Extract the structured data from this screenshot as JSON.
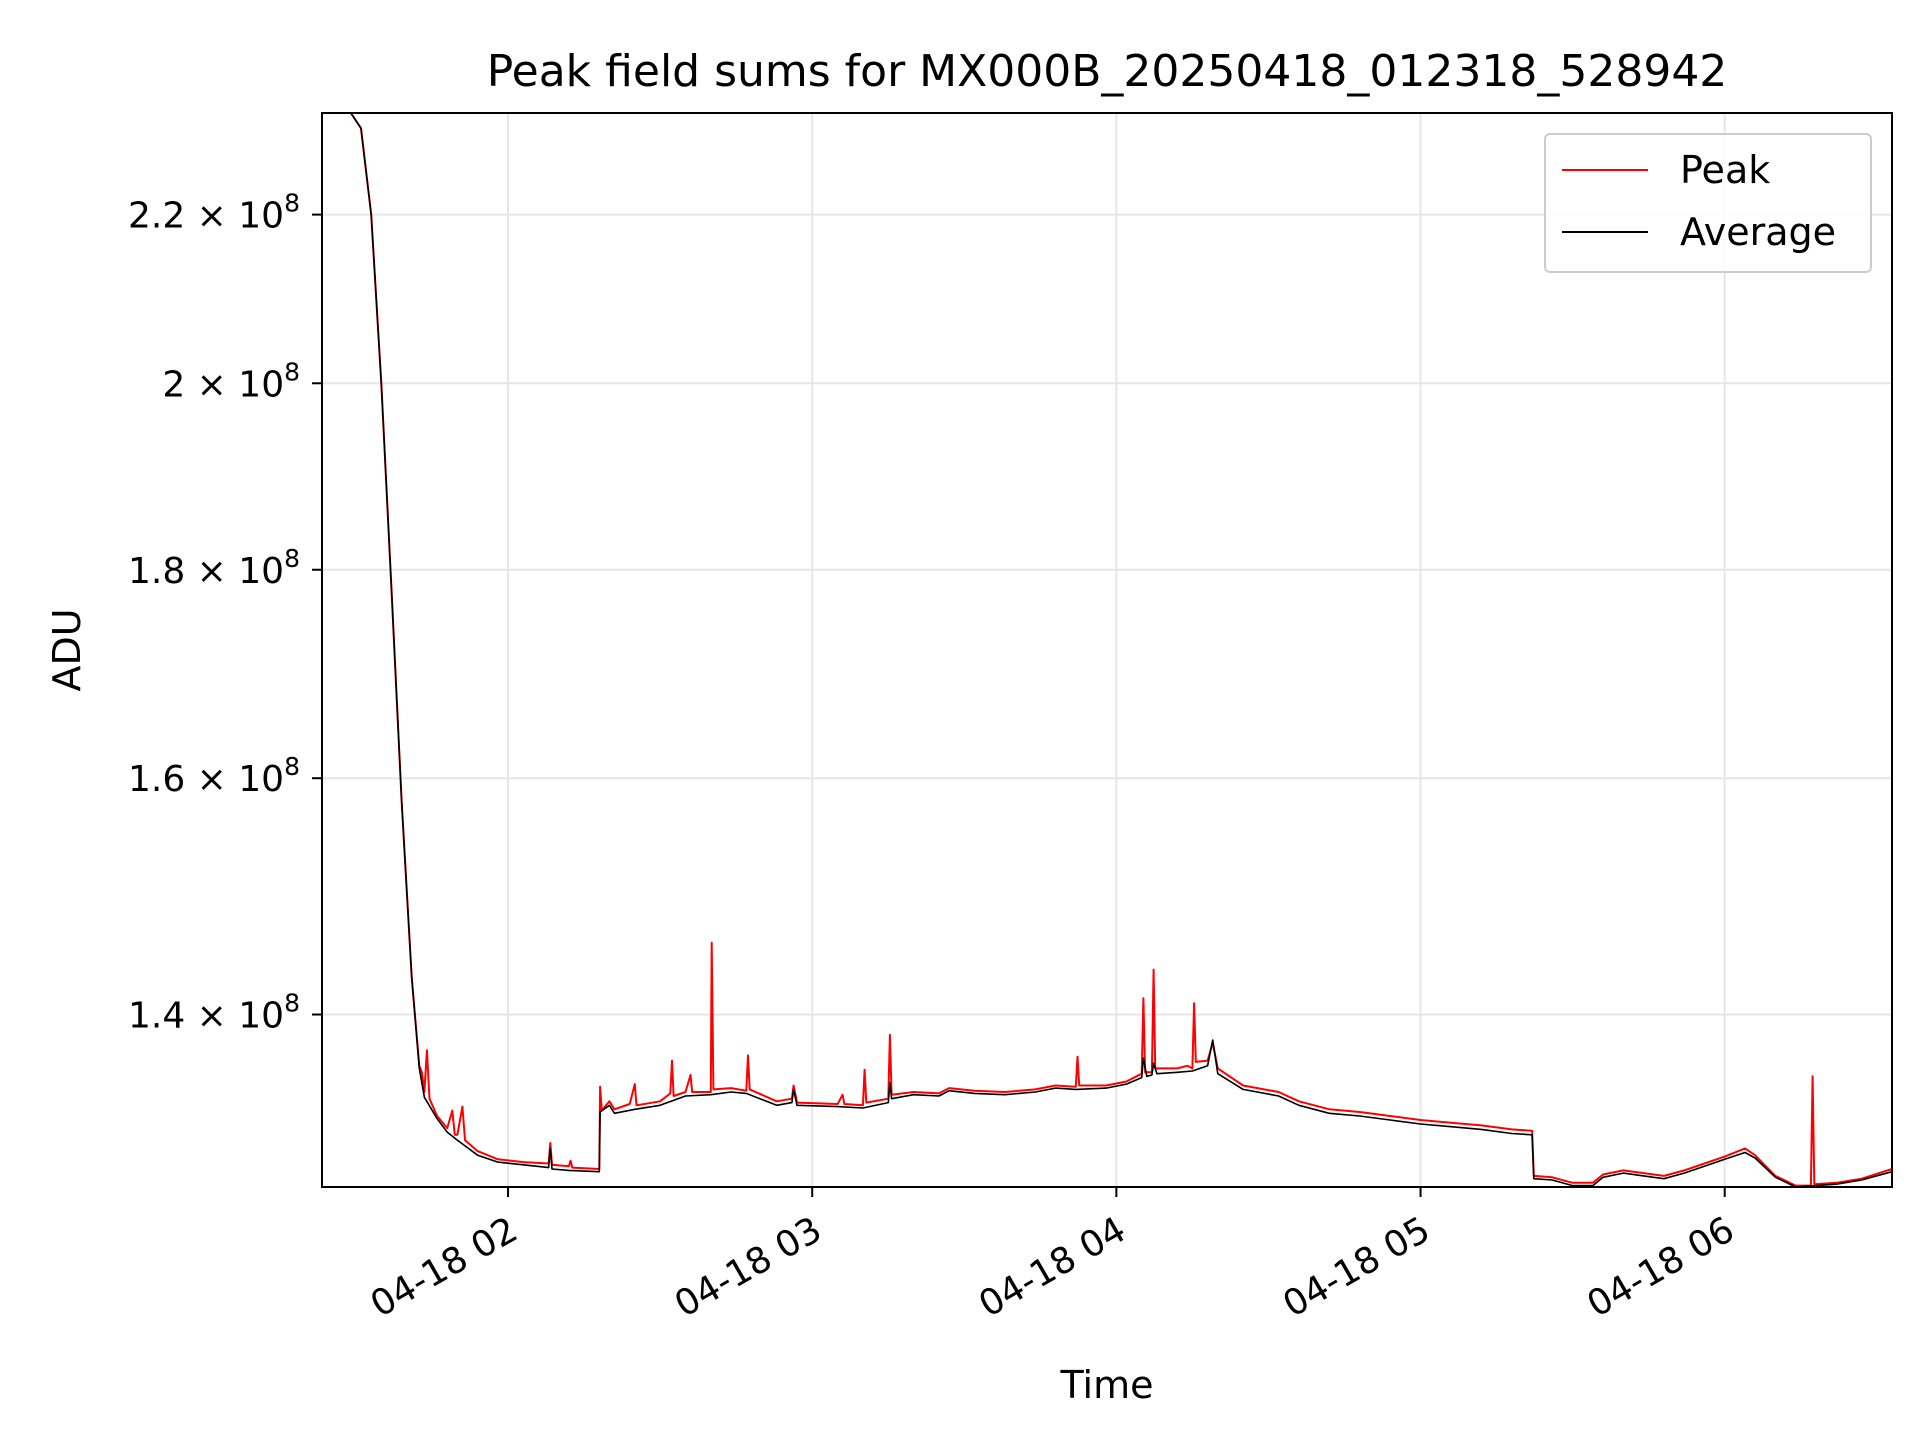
{
  "chart_data": {
    "type": "line",
    "title": "Peak field sums for MX000B_20250418_012318_528942",
    "xlabel": "Time",
    "ylabel": "ADU",
    "yscale": "log",
    "xlim": [
      "2025-04-18 01:23:18",
      "2025-04-18 06:33:00"
    ],
    "ylim": [
      127000000,
      233000000
    ],
    "x_ticks": [
      "04-18 02",
      "04-18 03",
      "04-18 04",
      "04-18 05",
      "04-18 06"
    ],
    "x_tick_values": [
      "2025-04-18 02:00",
      "2025-04-18 03:00",
      "2025-04-18 04:00",
      "2025-04-18 05:00",
      "2025-04-18 06:00"
    ],
    "y_ticks": [
      {
        "value": 140000000,
        "mantissa": "1.4",
        "exponent": "8"
      },
      {
        "value": 160000000,
        "mantissa": "1.6",
        "exponent": "8"
      },
      {
        "value": 180000000,
        "mantissa": "1.8",
        "exponent": "8"
      },
      {
        "value": 200000000,
        "mantissa": "2",
        "exponent": "8"
      },
      {
        "value": 220000000,
        "mantissa": "2.2",
        "exponent": "8"
      }
    ],
    "grid": true,
    "legend_position": "top-right",
    "series": [
      {
        "name": "Peak",
        "color": "#ff0000",
        "points": [
          [
            "2025-04-18 01:23:18",
            233000000
          ],
          [
            "2025-04-18 01:27:00",
            233000000
          ],
          [
            "2025-04-18 01:29:00",
            233000000
          ],
          [
            "2025-04-18 01:31:00",
            231000000
          ],
          [
            "2025-04-18 01:33:00",
            220000000
          ],
          [
            "2025-04-18 01:35:00",
            200000000
          ],
          [
            "2025-04-18 01:37:00",
            178000000
          ],
          [
            "2025-04-18 01:39:00",
            158000000
          ],
          [
            "2025-04-18 01:41:00",
            143000000
          ],
          [
            "2025-04-18 01:42:30",
            136000000
          ],
          [
            "2025-04-18 01:43:00",
            135500000
          ],
          [
            "2025-04-18 01:43:30",
            134000000
          ],
          [
            "2025-04-18 01:44:00",
            137200000
          ],
          [
            "2025-04-18 01:44:30",
            133500000
          ],
          [
            "2025-04-18 01:46:00",
            132200000
          ],
          [
            "2025-04-18 01:48:00",
            131300000
          ],
          [
            "2025-04-18 01:49:00",
            132600000
          ],
          [
            "2025-04-18 01:49:30",
            130800000
          ],
          [
            "2025-04-18 01:50:00",
            130800000
          ],
          [
            "2025-04-18 01:51:00",
            132900000
          ],
          [
            "2025-04-18 01:51:30",
            130400000
          ],
          [
            "2025-04-18 01:54:00",
            129600000
          ],
          [
            "2025-04-18 01:58:00",
            129000000
          ],
          [
            "2025-04-18 02:03:00",
            128800000
          ],
          [
            "2025-04-18 02:08:00",
            128700000
          ],
          [
            "2025-04-18 02:08:20",
            130200000
          ],
          [
            "2025-04-18 02:08:40",
            128600000
          ],
          [
            "2025-04-18 02:12:00",
            128500000
          ],
          [
            "2025-04-18 02:12:20",
            128900000
          ],
          [
            "2025-04-18 02:12:40",
            128400000
          ],
          [
            "2025-04-18 02:18:00",
            128300000
          ],
          [
            "2025-04-18 02:18:10",
            134400000
          ],
          [
            "2025-04-18 02:18:30",
            132600000
          ],
          [
            "2025-04-18 02:20:00",
            133300000
          ],
          [
            "2025-04-18 02:21:00",
            132700000
          ],
          [
            "2025-04-18 02:24:00",
            133100000
          ],
          [
            "2025-04-18 02:25:00",
            134600000
          ],
          [
            "2025-04-18 02:25:20",
            133000000
          ],
          [
            "2025-04-18 02:30:00",
            133300000
          ],
          [
            "2025-04-18 02:32:00",
            133900000
          ],
          [
            "2025-04-18 02:32:20",
            136400000
          ],
          [
            "2025-04-18 02:32:40",
            133700000
          ],
          [
            "2025-04-18 02:35:00",
            134000000
          ],
          [
            "2025-04-18 02:36:00",
            135300000
          ],
          [
            "2025-04-18 02:36:20",
            134000000
          ],
          [
            "2025-04-18 02:40:00",
            134000000
          ],
          [
            "2025-04-18 02:40:10",
            145800000
          ],
          [
            "2025-04-18 02:40:30",
            134200000
          ],
          [
            "2025-04-18 02:44:00",
            134300000
          ],
          [
            "2025-04-18 02:47:00",
            134100000
          ],
          [
            "2025-04-18 02:47:20",
            136800000
          ],
          [
            "2025-04-18 02:47:40",
            134200000
          ],
          [
            "2025-04-18 02:53:00",
            133300000
          ],
          [
            "2025-04-18 02:56:00",
            133500000
          ],
          [
            "2025-04-18 02:56:20",
            134500000
          ],
          [
            "2025-04-18 02:57:00",
            133200000
          ],
          [
            "2025-04-18 03:05:00",
            133100000
          ],
          [
            "2025-04-18 03:06:00",
            133800000
          ],
          [
            "2025-04-18 03:06:20",
            133100000
          ],
          [
            "2025-04-18 03:10:00",
            133000000
          ],
          [
            "2025-04-18 03:10:20",
            135700000
          ],
          [
            "2025-04-18 03:10:40",
            133200000
          ],
          [
            "2025-04-18 03:15:00",
            133500000
          ],
          [
            "2025-04-18 03:15:20",
            138400000
          ],
          [
            "2025-04-18 03:15:40",
            133800000
          ],
          [
            "2025-04-18 03:20:00",
            134000000
          ],
          [
            "2025-04-18 03:25:00",
            133900000
          ],
          [
            "2025-04-18 03:27:00",
            134300000
          ],
          [
            "2025-04-18 03:32:00",
            134100000
          ],
          [
            "2025-04-18 03:38:00",
            134000000
          ],
          [
            "2025-04-18 03:44:00",
            134200000
          ],
          [
            "2025-04-18 03:48:00",
            134500000
          ],
          [
            "2025-04-18 03:52:00",
            134400000
          ],
          [
            "2025-04-18 03:52:20",
            136700000
          ],
          [
            "2025-04-18 03:52:40",
            134500000
          ],
          [
            "2025-04-18 03:58:00",
            134500000
          ],
          [
            "2025-04-18 04:02:00",
            134800000
          ],
          [
            "2025-04-18 04:05:00",
            135400000
          ],
          [
            "2025-04-18 04:05:20",
            141300000
          ],
          [
            "2025-04-18 04:05:40",
            135500000
          ],
          [
            "2025-04-18 04:07:00",
            135500000
          ],
          [
            "2025-04-18 04:07:20",
            143600000
          ],
          [
            "2025-04-18 04:07:40",
            135800000
          ],
          [
            "2025-04-18 04:12:00",
            135800000
          ],
          [
            "2025-04-18 04:14:00",
            136000000
          ],
          [
            "2025-04-18 04:15:00",
            135800000
          ],
          [
            "2025-04-18 04:15:20",
            140900000
          ],
          [
            "2025-04-18 04:15:40",
            136300000
          ],
          [
            "2025-04-18 04:18:00",
            136400000
          ],
          [
            "2025-04-18 04:19:00",
            137800000
          ],
          [
            "2025-04-18 04:20:00",
            135800000
          ],
          [
            "2025-04-18 04:25:00",
            134500000
          ],
          [
            "2025-04-18 04:32:00",
            134000000
          ],
          [
            "2025-04-18 04:36:00",
            133300000
          ],
          [
            "2025-04-18 04:42:00",
            132700000
          ],
          [
            "2025-04-18 04:48:00",
            132500000
          ],
          [
            "2025-04-18 04:54:00",
            132200000
          ],
          [
            "2025-04-18 05:00:00",
            131900000
          ],
          [
            "2025-04-18 05:06:00",
            131700000
          ],
          [
            "2025-04-18 05:12:00",
            131500000
          ],
          [
            "2025-04-18 05:18:00",
            131200000
          ],
          [
            "2025-04-18 05:22:00",
            131100000
          ],
          [
            "2025-04-18 05:22:20",
            127800000
          ],
          [
            "2025-04-18 05:26:00",
            127700000
          ],
          [
            "2025-04-18 05:30:00",
            127300000
          ],
          [
            "2025-04-18 05:34:00",
            127300000
          ],
          [
            "2025-04-18 05:36:00",
            127900000
          ],
          [
            "2025-04-18 05:40:00",
            128200000
          ],
          [
            "2025-04-18 05:44:00",
            128000000
          ],
          [
            "2025-04-18 05:48:00",
            127800000
          ],
          [
            "2025-04-18 05:52:00",
            128200000
          ],
          [
            "2025-04-18 05:56:00",
            128700000
          ],
          [
            "2025-04-18 06:00:00",
            129200000
          ],
          [
            "2025-04-18 06:04:00",
            129800000
          ],
          [
            "2025-04-18 06:06:00",
            129300000
          ],
          [
            "2025-04-18 06:10:00",
            127800000
          ],
          [
            "2025-04-18 06:14:00",
            127100000
          ],
          [
            "2025-04-18 06:17:00",
            127100000
          ],
          [
            "2025-04-18 06:17:20",
            135200000
          ],
          [
            "2025-04-18 06:17:40",
            127200000
          ],
          [
            "2025-04-18 06:22:00",
            127300000
          ],
          [
            "2025-04-18 06:27:00",
            127600000
          ],
          [
            "2025-04-18 06:33:00",
            128300000
          ]
        ]
      },
      {
        "name": "Average",
        "color": "#000000",
        "points": [
          [
            "2025-04-18 01:23:18",
            233000000
          ],
          [
            "2025-04-18 01:27:00",
            233000000
          ],
          [
            "2025-04-18 01:29:00",
            233000000
          ],
          [
            "2025-04-18 01:31:00",
            231000000
          ],
          [
            "2025-04-18 01:33:00",
            220000000
          ],
          [
            "2025-04-18 01:35:00",
            200000000
          ],
          [
            "2025-04-18 01:37:00",
            178000000
          ],
          [
            "2025-04-18 01:39:00",
            158000000
          ],
          [
            "2025-04-18 01:41:00",
            143000000
          ],
          [
            "2025-04-18 01:42:30",
            135800000
          ],
          [
            "2025-04-18 01:43:30",
            133600000
          ],
          [
            "2025-04-18 01:46:00",
            132000000
          ],
          [
            "2025-04-18 01:48:00",
            131000000
          ],
          [
            "2025-04-18 01:50:00",
            130400000
          ],
          [
            "2025-04-18 01:54:00",
            129300000
          ],
          [
            "2025-04-18 01:58:00",
            128800000
          ],
          [
            "2025-04-18 02:03:00",
            128600000
          ],
          [
            "2025-04-18 02:08:00",
            128400000
          ],
          [
            "2025-04-18 02:08:20",
            129800000
          ],
          [
            "2025-04-18 02:08:40",
            128300000
          ],
          [
            "2025-04-18 02:12:00",
            128200000
          ],
          [
            "2025-04-18 02:18:00",
            128100000
          ],
          [
            "2025-04-18 02:18:10",
            132500000
          ],
          [
            "2025-04-18 02:20:00",
            133000000
          ],
          [
            "2025-04-18 02:21:00",
            132400000
          ],
          [
            "2025-04-18 02:25:00",
            132700000
          ],
          [
            "2025-04-18 02:30:00",
            133000000
          ],
          [
            "2025-04-18 02:35:00",
            133700000
          ],
          [
            "2025-04-18 02:40:00",
            133800000
          ],
          [
            "2025-04-18 02:44:00",
            134000000
          ],
          [
            "2025-04-18 02:47:00",
            133900000
          ],
          [
            "2025-04-18 02:53:00",
            133000000
          ],
          [
            "2025-04-18 02:56:00",
            133200000
          ],
          [
            "2025-04-18 02:56:20",
            134200000
          ],
          [
            "2025-04-18 02:57:00",
            133000000
          ],
          [
            "2025-04-18 03:05:00",
            132900000
          ],
          [
            "2025-04-18 03:10:00",
            132800000
          ],
          [
            "2025-04-18 03:15:00",
            133200000
          ],
          [
            "2025-04-18 03:15:20",
            134700000
          ],
          [
            "2025-04-18 03:15:40",
            133500000
          ],
          [
            "2025-04-18 03:20:00",
            133800000
          ],
          [
            "2025-04-18 03:25:00",
            133700000
          ],
          [
            "2025-04-18 03:27:00",
            134100000
          ],
          [
            "2025-04-18 03:32:00",
            133900000
          ],
          [
            "2025-04-18 03:38:00",
            133800000
          ],
          [
            "2025-04-18 03:44:00",
            134000000
          ],
          [
            "2025-04-18 03:48:00",
            134300000
          ],
          [
            "2025-04-18 03:52:00",
            134200000
          ],
          [
            "2025-04-18 03:58:00",
            134300000
          ],
          [
            "2025-04-18 04:02:00",
            134600000
          ],
          [
            "2025-04-18 04:05:00",
            135100000
          ],
          [
            "2025-04-18 04:05:20",
            136600000
          ],
          [
            "2025-04-18 04:06:00",
            135200000
          ],
          [
            "2025-04-18 04:07:00",
            135300000
          ],
          [
            "2025-04-18 04:07:20",
            136200000
          ],
          [
            "2025-04-18 04:08:00",
            135400000
          ],
          [
            "2025-04-18 04:12:00",
            135500000
          ],
          [
            "2025-04-18 04:15:00",
            135600000
          ],
          [
            "2025-04-18 04:18:00",
            136000000
          ],
          [
            "2025-04-18 04:19:00",
            138000000
          ],
          [
            "2025-04-18 04:20:00",
            135400000
          ],
          [
            "2025-04-18 04:25:00",
            134200000
          ],
          [
            "2025-04-18 04:32:00",
            133700000
          ],
          [
            "2025-04-18 04:36:00",
            133000000
          ],
          [
            "2025-04-18 04:42:00",
            132400000
          ],
          [
            "2025-04-18 04:48:00",
            132200000
          ],
          [
            "2025-04-18 04:54:00",
            131900000
          ],
          [
            "2025-04-18 05:00:00",
            131600000
          ],
          [
            "2025-04-18 05:06:00",
            131400000
          ],
          [
            "2025-04-18 05:12:00",
            131200000
          ],
          [
            "2025-04-18 05:18:00",
            130900000
          ],
          [
            "2025-04-18 05:22:00",
            130800000
          ],
          [
            "2025-04-18 05:22:20",
            127600000
          ],
          [
            "2025-04-18 05:26:00",
            127500000
          ],
          [
            "2025-04-18 05:30:00",
            127100000
          ],
          [
            "2025-04-18 05:34:00",
            127100000
          ],
          [
            "2025-04-18 05:36:00",
            127700000
          ],
          [
            "2025-04-18 05:40:00",
            128000000
          ],
          [
            "2025-04-18 05:44:00",
            127800000
          ],
          [
            "2025-04-18 05:48:00",
            127600000
          ],
          [
            "2025-04-18 05:52:00",
            128000000
          ],
          [
            "2025-04-18 05:56:00",
            128500000
          ],
          [
            "2025-04-18 06:00:00",
            129000000
          ],
          [
            "2025-04-18 06:04:00",
            129500000
          ],
          [
            "2025-04-18 06:06:00",
            129100000
          ],
          [
            "2025-04-18 06:10:00",
            127700000
          ],
          [
            "2025-04-18 06:14:00",
            127000000
          ],
          [
            "2025-04-18 06:22:00",
            127200000
          ],
          [
            "2025-04-18 06:27:00",
            127500000
          ],
          [
            "2025-04-18 06:33:00",
            128100000
          ]
        ]
      }
    ]
  }
}
